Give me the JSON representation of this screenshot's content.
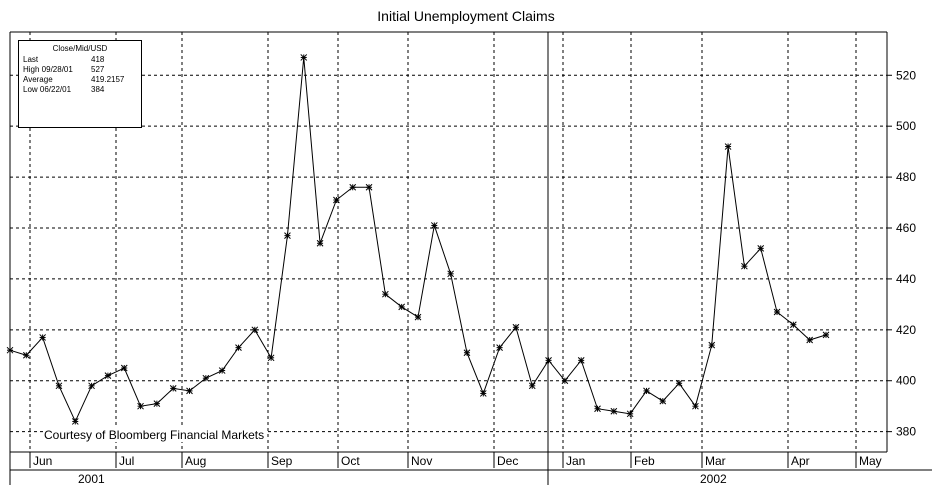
{
  "chart_data": {
    "type": "line",
    "title": "Initial Unemployment Claims",
    "legend_box": {
      "header": "Close/Mid/USD",
      "rows": [
        {
          "label": "Last",
          "value": "418"
        },
        {
          "label": "High 09/28/01",
          "value": "527"
        },
        {
          "label": "Average",
          "value": "419.2157"
        },
        {
          "label": "Low 06/22/01",
          "value": "384"
        }
      ]
    },
    "annotation": "Courtesy of Bloomberg Financial Markets",
    "y_axis": {
      "side": "right",
      "ticks": [
        380,
        400,
        420,
        440,
        460,
        480,
        500,
        520
      ],
      "ylim": [
        372,
        537
      ]
    },
    "x_axis": {
      "months": [
        "Jun",
        "Jul",
        "Aug",
        "Sep",
        "Oct",
        "Nov",
        "Dec",
        "Jan",
        "Feb",
        "Mar",
        "Apr",
        "May"
      ],
      "years": [
        "2001",
        "2002"
      ]
    },
    "grid": true,
    "marker": "asterisk",
    "series": [
      {
        "values": [
          412,
          410,
          417,
          398,
          384,
          398,
          402,
          405,
          390,
          391,
          397,
          396,
          401,
          404,
          413,
          420,
          409,
          457,
          527,
          454,
          471,
          476,
          476,
          434,
          429,
          425,
          461,
          442,
          411,
          395,
          413,
          421,
          398,
          408,
          400,
          408,
          389,
          388,
          387,
          396,
          392,
          399,
          390,
          414,
          492,
          445,
          452,
          427,
          422,
          416,
          418
        ]
      }
    ]
  }
}
